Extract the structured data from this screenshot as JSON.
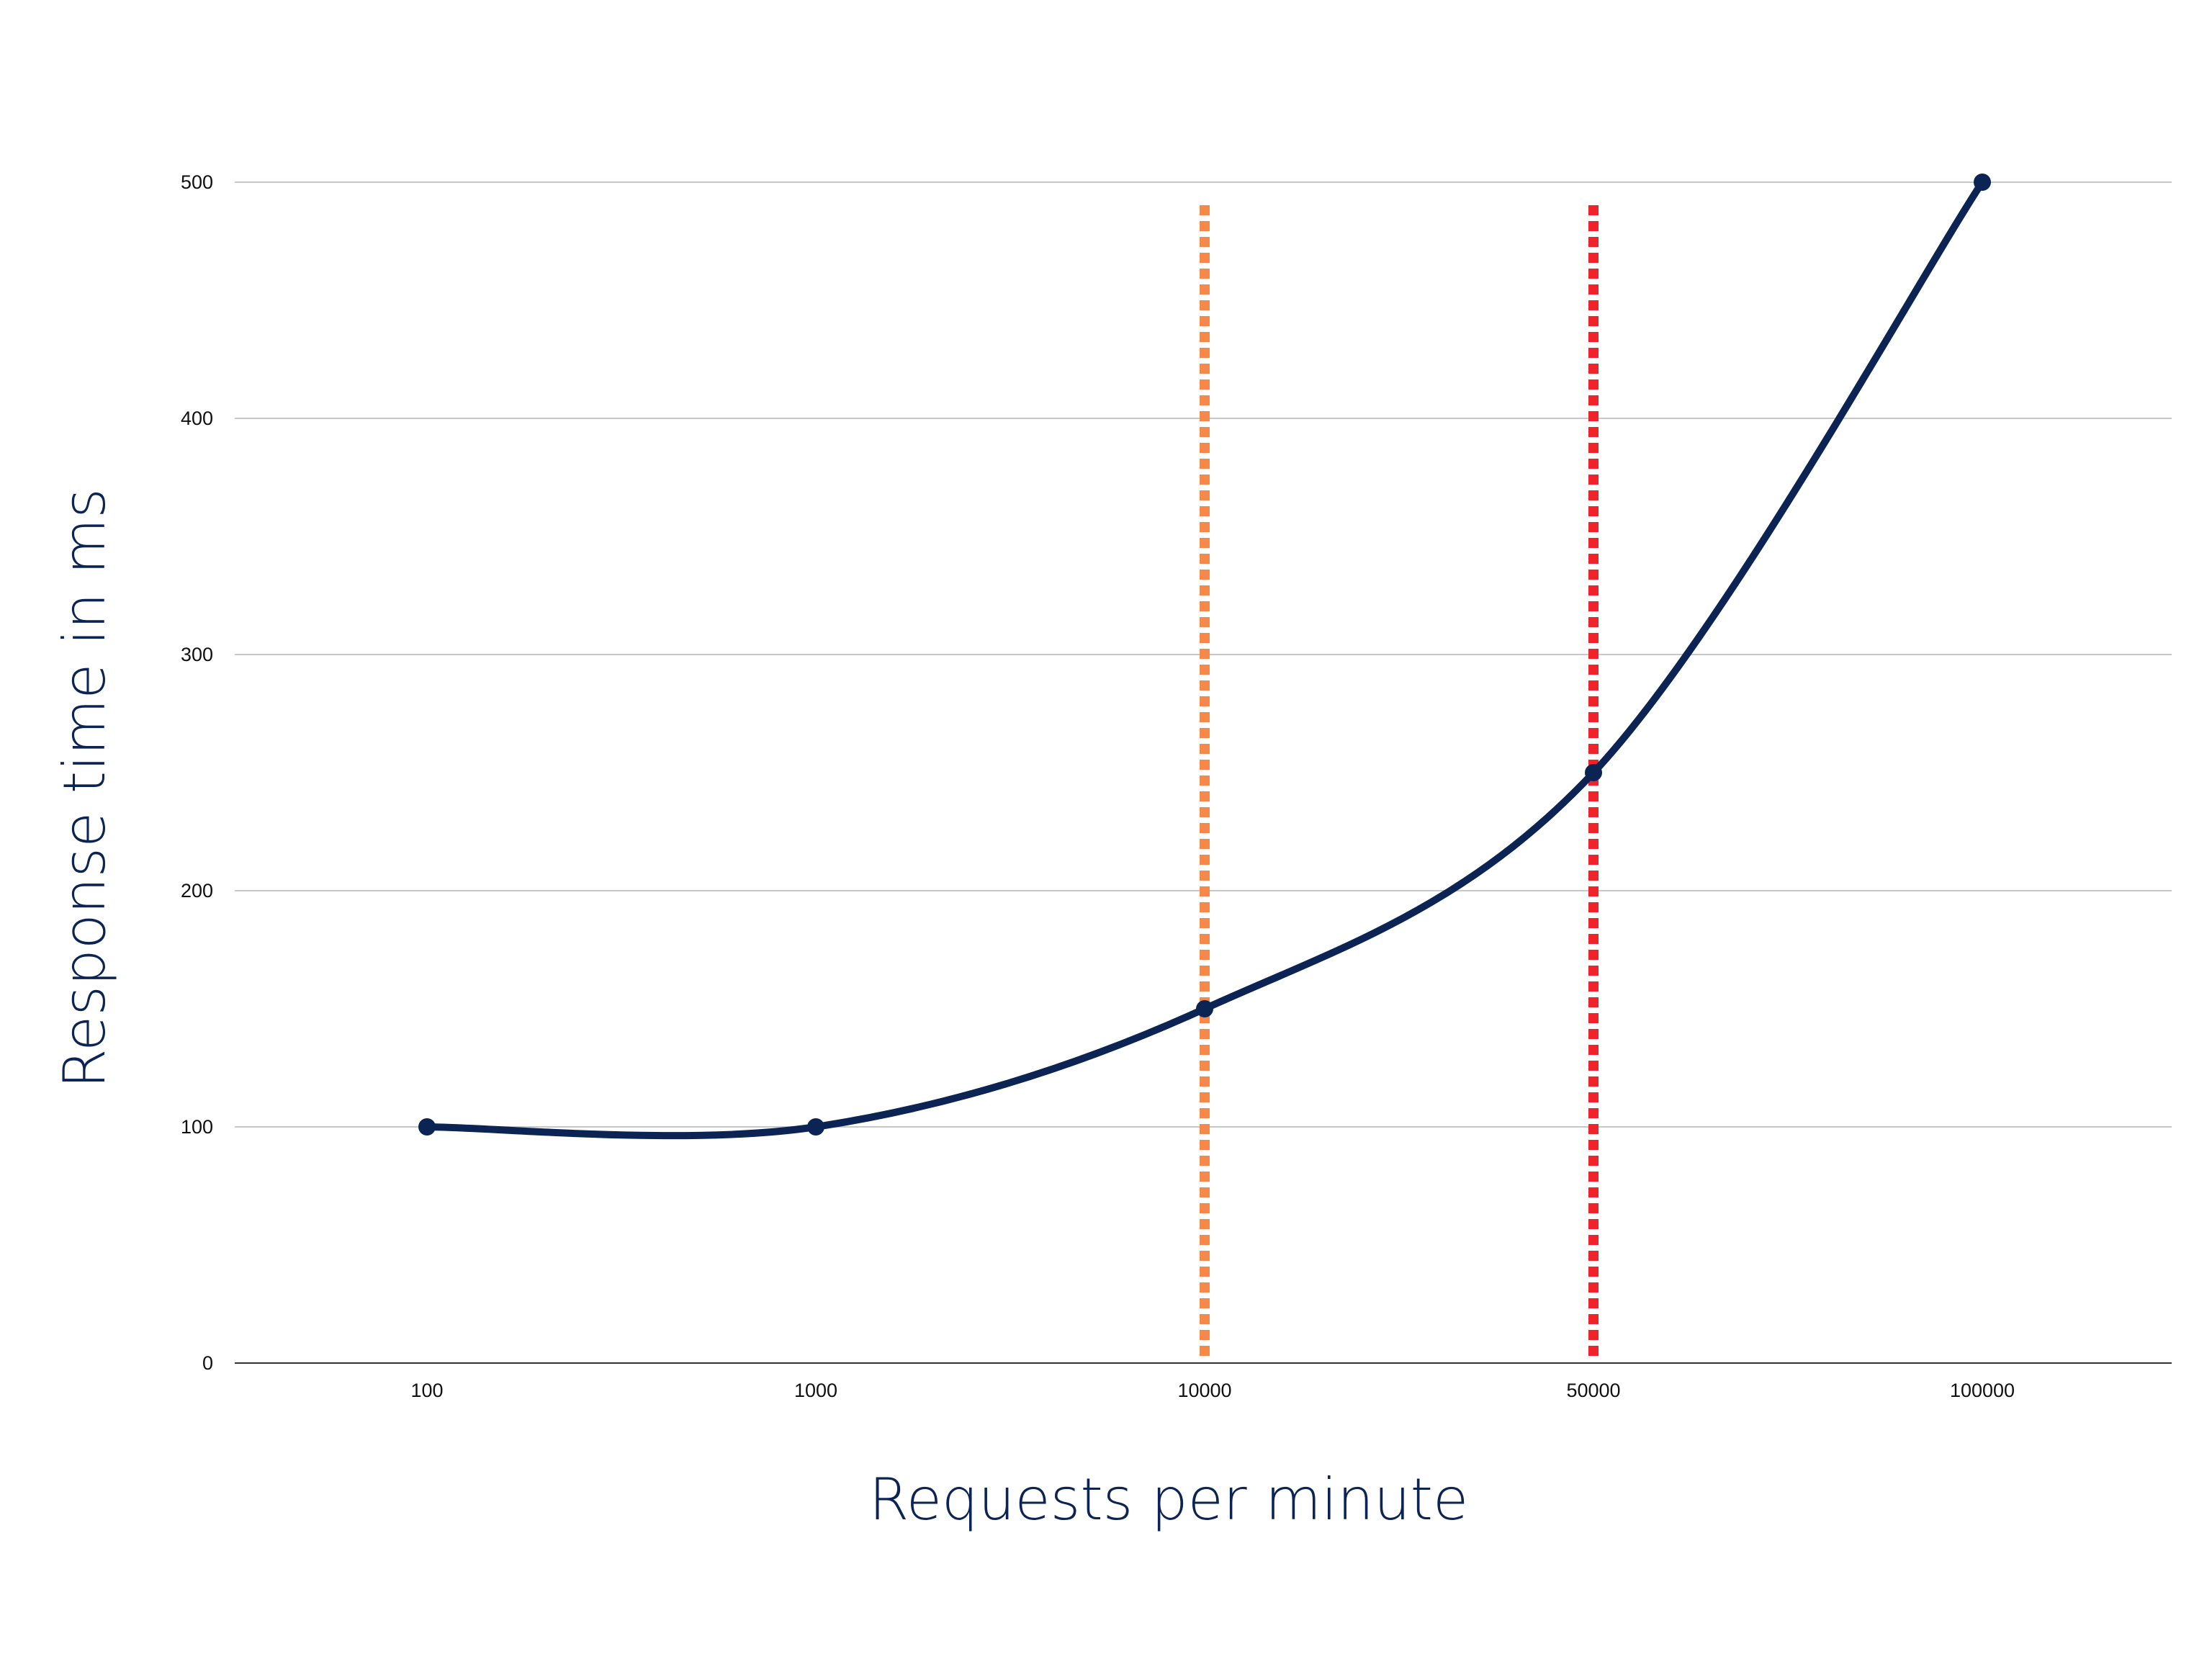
{
  "chart_data": {
    "type": "line",
    "xlabel": "Requests per minute",
    "ylabel": "Response time in ms",
    "categories": [
      "100",
      "1000",
      "10000",
      "50000",
      "100000"
    ],
    "series": [
      {
        "values": [
          100,
          100,
          150,
          250,
          500
        ],
        "color": "#0b2454"
      }
    ],
    "yticks": [
      "0",
      "100",
      "200",
      "300",
      "400",
      "500"
    ],
    "ylim": [
      0,
      500
    ],
    "grid": true,
    "reference_lines": [
      {
        "at_category": "10000",
        "color": "#f5894a",
        "style": "dotted"
      },
      {
        "at_category": "50000",
        "color": "#f0222a",
        "style": "dotted"
      }
    ],
    "line_color": "#0b2454",
    "grid_color": "#c8c8c8"
  }
}
